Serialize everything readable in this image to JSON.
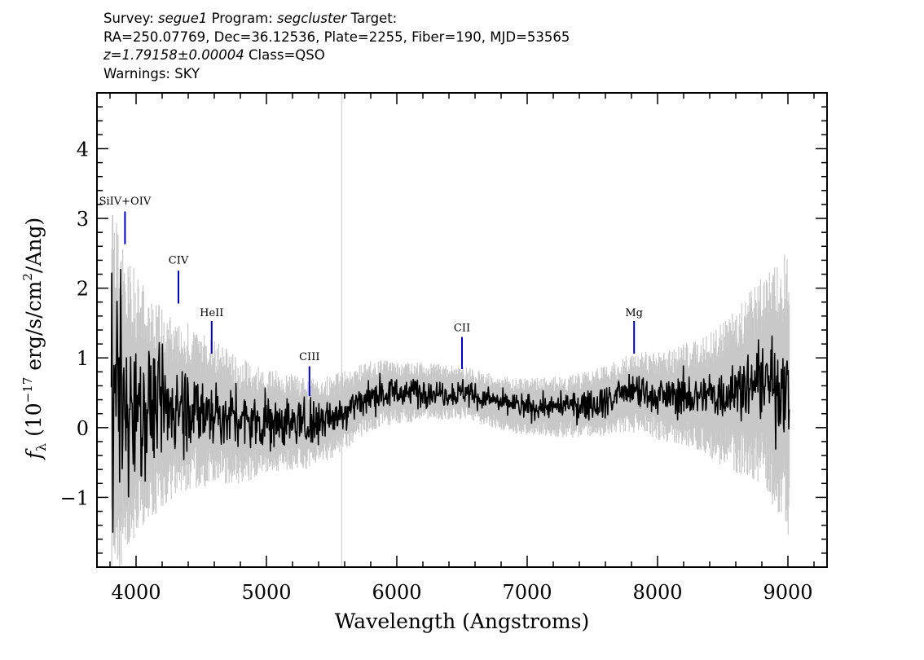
{
  "header": {
    "line1": {
      "survey_label": "Survey:",
      "survey": "segue1",
      "program_label": "Program:",
      "program": "segcluster",
      "target_label": "Target:"
    },
    "line2": "RA=250.07769, Dec=36.12536, Plate=2255, Fiber=190, MJD=53565",
    "line3": {
      "redshift": "z=1.79158±0.00004",
      "class": "Class=QSO"
    },
    "line4": "Warnings: SKY"
  },
  "chart_data": {
    "type": "line",
    "xlabel": "Wavelength (Angstroms)",
    "ylabel_parts": {
      "symbol": "f",
      "subscript": "λ",
      "unit_open": " (10",
      "exponent": "−17",
      "unit_mid": " erg/s/cm",
      "unit_exp": "2",
      "unit_close": "/Ang)"
    },
    "xlim": [
      3700,
      9300
    ],
    "ylim": [
      -2.0,
      4.8
    ],
    "x_ticks": [
      4000,
      5000,
      6000,
      7000,
      8000,
      9000
    ],
    "x_tick_labels": [
      "4000",
      "5000",
      "6000",
      "7000",
      "8000",
      "9000"
    ],
    "y_ticks": [
      -1,
      0,
      1,
      2,
      3,
      4
    ],
    "y_tick_labels": [
      "−1",
      "0",
      "1",
      "2",
      "3",
      "4"
    ],
    "data_range": [
      3810,
      9010
    ],
    "sky_line_x": 5577,
    "series": [
      {
        "role": "error",
        "color": "#c8c8c8",
        "x": [
          3810,
          3850,
          3900,
          4000,
          4100,
          4200,
          4300,
          4400,
          4500,
          4600,
          4700,
          4800,
          4900,
          5000,
          5100,
          5200,
          5300,
          5400,
          5500,
          5600,
          5700,
          5800,
          5900,
          6000,
          6100,
          6200,
          6300,
          6400,
          6500,
          6600,
          6700,
          6800,
          6900,
          7000,
          7100,
          7200,
          7300,
          7400,
          7500,
          7600,
          7700,
          7800,
          7900,
          8000,
          8100,
          8200,
          8300,
          8400,
          8500,
          8600,
          8700,
          8800,
          8900,
          9000
        ],
        "values": [
          1.9,
          1.7,
          1.5,
          1.3,
          1.1,
          0.95,
          0.85,
          0.8,
          0.75,
          0.7,
          0.65,
          0.6,
          0.55,
          0.5,
          0.48,
          0.46,
          0.44,
          0.42,
          0.4,
          0.38,
          0.36,
          0.34,
          0.32,
          0.3,
          0.29,
          0.28,
          0.27,
          0.26,
          0.26,
          0.26,
          0.26,
          0.26,
          0.27,
          0.27,
          0.28,
          0.29,
          0.3,
          0.31,
          0.32,
          0.34,
          0.36,
          0.38,
          0.4,
          0.42,
          0.45,
          0.5,
          0.55,
          0.6,
          0.7,
          0.8,
          0.9,
          1.0,
          1.2,
          1.4
        ]
      },
      {
        "role": "flux",
        "color": "#000000",
        "x": [
          3810,
          3850,
          3900,
          4000,
          4100,
          4200,
          4300,
          4400,
          4500,
          4600,
          4700,
          4800,
          4900,
          5000,
          5100,
          5200,
          5300,
          5400,
          5500,
          5600,
          5700,
          5800,
          5900,
          6000,
          6100,
          6200,
          6300,
          6400,
          6500,
          6600,
          6700,
          6800,
          6900,
          7000,
          7100,
          7200,
          7300,
          7400,
          7500,
          7600,
          7700,
          7800,
          7900,
          8000,
          8100,
          8200,
          8300,
          8400,
          8500,
          8600,
          8700,
          8800,
          8900,
          9000
        ],
        "values": [
          0.4,
          0.4,
          0.35,
          0.3,
          0.3,
          0.28,
          0.28,
          0.3,
          0.25,
          0.2,
          0.15,
          0.1,
          0.08,
          0.1,
          0.1,
          0.08,
          0.05,
          0.08,
          0.15,
          0.25,
          0.35,
          0.45,
          0.5,
          0.5,
          0.5,
          0.52,
          0.52,
          0.5,
          0.5,
          0.45,
          0.4,
          0.35,
          0.32,
          0.3,
          0.3,
          0.3,
          0.3,
          0.32,
          0.35,
          0.38,
          0.45,
          0.5,
          0.5,
          0.45,
          0.45,
          0.45,
          0.45,
          0.45,
          0.5,
          0.55,
          0.6,
          0.65,
          0.6,
          0.5
        ],
        "noise_amplitude": [
          1.3,
          1.2,
          1.0,
          0.75,
          0.6,
          0.5,
          0.45,
          0.42,
          0.4,
          0.38,
          0.35,
          0.32,
          0.3,
          0.28,
          0.26,
          0.25,
          0.24,
          0.23,
          0.22,
          0.2,
          0.19,
          0.18,
          0.17,
          0.16,
          0.15,
          0.15,
          0.14,
          0.14,
          0.14,
          0.13,
          0.13,
          0.13,
          0.13,
          0.13,
          0.13,
          0.14,
          0.14,
          0.15,
          0.15,
          0.16,
          0.17,
          0.18,
          0.19,
          0.2,
          0.21,
          0.23,
          0.25,
          0.27,
          0.3,
          0.34,
          0.38,
          0.42,
          0.48,
          0.55
        ]
      }
    ],
    "annotations": [
      {
        "label": "SiIV+OIV",
        "x": 3915,
        "label_y": 3.2,
        "tick_top": 3.1,
        "tick_bottom": 2.63
      },
      {
        "label": "CIV",
        "x": 4325,
        "label_y": 2.35,
        "tick_top": 2.25,
        "tick_bottom": 1.78
      },
      {
        "label": "HeII",
        "x": 4580,
        "label_y": 1.6,
        "tick_top": 1.53,
        "tick_bottom": 1.06
      },
      {
        "label": "CIII",
        "x": 5330,
        "label_y": 0.97,
        "tick_top": 0.88,
        "tick_bottom": 0.45
      },
      {
        "label": "CII",
        "x": 6500,
        "label_y": 1.38,
        "tick_top": 1.3,
        "tick_bottom": 0.84
      },
      {
        "label": "Mg",
        "x": 7820,
        "label_y": 1.6,
        "tick_top": 1.53,
        "tick_bottom": 1.06
      }
    ],
    "annotation_color": "#0000cc"
  }
}
